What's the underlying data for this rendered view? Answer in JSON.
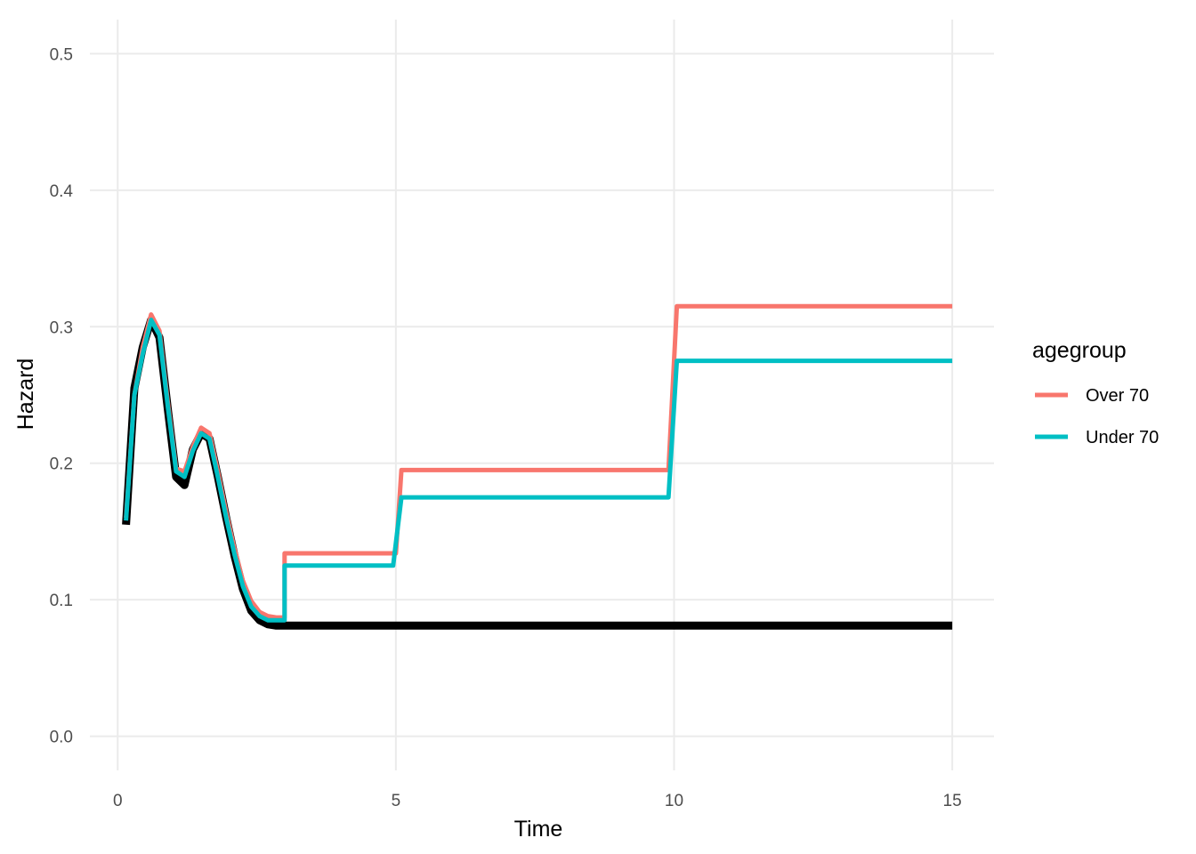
{
  "chart_data": {
    "type": "line",
    "xlabel": "Time",
    "ylabel": "Hazard",
    "xlim": [
      -0.5,
      15.75
    ],
    "ylim": [
      -0.025,
      0.525
    ],
    "x_ticks": [
      {
        "value": 0,
        "label": "0"
      },
      {
        "value": 5,
        "label": "5"
      },
      {
        "value": 10,
        "label": "10"
      },
      {
        "value": 15,
        "label": "15"
      }
    ],
    "y_ticks": [
      {
        "value": 0.0,
        "label": "0.0"
      },
      {
        "value": 0.1,
        "label": "0.1"
      },
      {
        "value": 0.2,
        "label": "0.2"
      },
      {
        "value": 0.3,
        "label": "0.3"
      },
      {
        "value": 0.4,
        "label": "0.4"
      },
      {
        "value": 0.5,
        "label": "0.5"
      }
    ],
    "grid": true,
    "legend": {
      "title": "agegroup",
      "position": "right",
      "entries": [
        {
          "label": "Over 70",
          "color": "#F8766D"
        },
        {
          "label": "Under 70",
          "color": "#00BFC4"
        }
      ]
    },
    "series": [
      {
        "color": "#000000",
        "x": [
          0.15,
          0.3,
          0.45,
          0.6,
          0.75,
          0.9,
          1.05,
          1.2,
          1.35,
          1.5,
          1.65,
          1.8,
          1.95,
          2.1,
          2.25,
          2.4,
          2.55,
          2.7,
          2.85,
          3.0,
          15.0
        ],
        "y": [
          0.155,
          0.255,
          0.285,
          0.305,
          0.292,
          0.24,
          0.19,
          0.184,
          0.21,
          0.222,
          0.218,
          0.19,
          0.16,
          0.132,
          0.108,
          0.092,
          0.085,
          0.082,
          0.081,
          0.081,
          0.081
        ]
      },
      {
        "name": "Over 70",
        "color": "#F8766D",
        "x": [
          0.15,
          0.3,
          0.45,
          0.6,
          0.75,
          0.9,
          1.05,
          1.2,
          1.35,
          1.5,
          1.65,
          1.8,
          1.95,
          2.1,
          2.25,
          2.4,
          2.55,
          2.7,
          2.85,
          3.0,
          3.0,
          5.0,
          5.1,
          9.9,
          10.05,
          15.0
        ],
        "y": [
          0.16,
          0.25,
          0.285,
          0.309,
          0.297,
          0.245,
          0.196,
          0.194,
          0.212,
          0.226,
          0.222,
          0.194,
          0.164,
          0.137,
          0.114,
          0.099,
          0.091,
          0.088,
          0.087,
          0.087,
          0.134,
          0.134,
          0.195,
          0.195,
          0.315,
          0.315
        ]
      },
      {
        "name": "Under 70",
        "color": "#00BFC4",
        "x": [
          0.15,
          0.3,
          0.45,
          0.6,
          0.75,
          0.9,
          1.05,
          1.2,
          1.35,
          1.5,
          1.65,
          1.8,
          1.95,
          2.1,
          2.25,
          2.4,
          2.55,
          2.7,
          2.85,
          3.0,
          3.0,
          4.95,
          5.1,
          9.9,
          10.05,
          15.0
        ],
        "y": [
          0.158,
          0.25,
          0.28,
          0.305,
          0.294,
          0.242,
          0.194,
          0.19,
          0.209,
          0.222,
          0.218,
          0.19,
          0.16,
          0.133,
          0.11,
          0.095,
          0.088,
          0.085,
          0.085,
          0.085,
          0.125,
          0.125,
          0.175,
          0.175,
          0.275,
          0.275
        ]
      }
    ]
  }
}
